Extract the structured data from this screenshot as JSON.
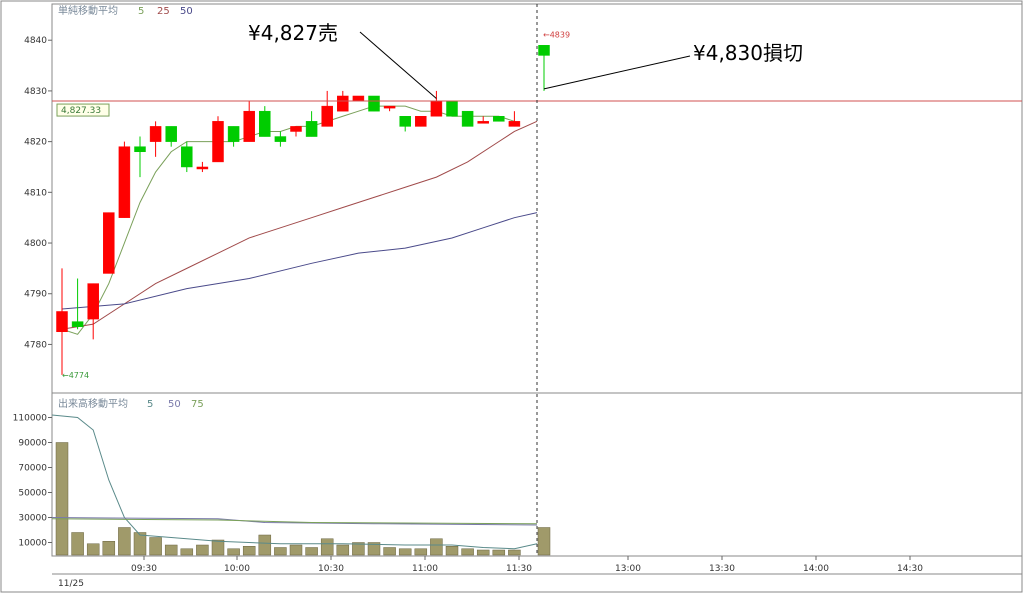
{
  "chart_data": [
    {
      "type": "candlestick",
      "title": "単純移動平均",
      "ma_periods": [
        "5",
        "25",
        "50"
      ],
      "ma_colors": [
        "#7aa05a",
        "#a04a4a",
        "#4a4a8a"
      ],
      "ylim": [
        4772,
        4843
      ],
      "y_ticks": [
        "4780",
        "4790",
        "4800",
        "4810",
        "4820",
        "4830",
        "4840"
      ],
      "bar_interval_minutes": 5,
      "candles": [
        {
          "time": "09:05",
          "open": 4782.5,
          "high": 4795,
          "low": 4774,
          "close": 4786.5
        },
        {
          "time": "09:10",
          "open": 4784.5,
          "high": 4793,
          "low": 4783,
          "close": 4783.5
        },
        {
          "time": "09:15",
          "open": 4785,
          "high": 4792,
          "low": 4781,
          "close": 4792
        },
        {
          "time": "09:20",
          "open": 4794,
          "high": 4806,
          "low": 4794,
          "close": 4806
        },
        {
          "time": "09:25",
          "open": 4805,
          "high": 4820,
          "low": 4805,
          "close": 4819
        },
        {
          "time": "09:30",
          "open": 4819,
          "high": 4821,
          "low": 4813,
          "close": 4818
        },
        {
          "time": "09:35",
          "open": 4820,
          "high": 4824,
          "low": 4817,
          "close": 4823
        },
        {
          "time": "09:40",
          "open": 4823,
          "high": 4823,
          "low": 4819,
          "close": 4820
        },
        {
          "time": "09:45",
          "open": 4819,
          "high": 4820,
          "low": 4814,
          "close": 4815
        },
        {
          "time": "09:50",
          "open": 4815,
          "high": 4816,
          "low": 4814,
          "close": 4815
        },
        {
          "time": "09:55",
          "open": 4816,
          "high": 4825,
          "low": 4816,
          "close": 4824
        },
        {
          "time": "10:00",
          "open": 4823,
          "high": 4823,
          "low": 4819,
          "close": 4820
        },
        {
          "time": "10:05",
          "open": 4820,
          "high": 4828,
          "low": 4820,
          "close": 4826
        },
        {
          "time": "10:10",
          "open": 4826,
          "high": 4827,
          "low": 4821,
          "close": 4821
        },
        {
          "time": "10:15",
          "open": 4821,
          "high": 4822,
          "low": 4819,
          "close": 4820
        },
        {
          "time": "10:20",
          "open": 4822,
          "high": 4823,
          "low": 4821,
          "close": 4823
        },
        {
          "time": "10:25",
          "open": 4824,
          "high": 4826,
          "low": 4821,
          "close": 4821
        },
        {
          "time": "10:30",
          "open": 4823,
          "high": 4830,
          "low": 4823,
          "close": 4827
        },
        {
          "time": "10:35",
          "open": 4826,
          "high": 4830,
          "low": 4826,
          "close": 4829
        },
        {
          "time": "10:40",
          "open": 4828,
          "high": 4829,
          "low": 4828,
          "close": 4829
        },
        {
          "time": "10:45",
          "open": 4829,
          "high": 4829,
          "low": 4826,
          "close": 4826
        },
        {
          "time": "10:50",
          "open": 4827,
          "high": 4827,
          "low": 4826,
          "close": 4827
        },
        {
          "time": "10:55",
          "open": 4825,
          "high": 4825,
          "low": 4822,
          "close": 4823
        },
        {
          "time": "11:00",
          "open": 4823,
          "high": 4825,
          "low": 4823,
          "close": 4825
        },
        {
          "time": "11:05",
          "open": 4825,
          "high": 4830,
          "low": 4825,
          "close": 4828
        },
        {
          "time": "11:10",
          "open": 4828,
          "high": 4828,
          "low": 4825,
          "close": 4825
        },
        {
          "time": "11:15",
          "open": 4826,
          "high": 4826,
          "low": 4823,
          "close": 4823
        },
        {
          "time": "11:20",
          "open": 4824,
          "high": 4825,
          "low": 4824,
          "close": 4824
        },
        {
          "time": "11:25",
          "open": 4825,
          "high": 4825,
          "low": 4824,
          "close": 4824
        },
        {
          "time": "11:30",
          "open": 4823,
          "high": 4826,
          "low": 4823,
          "close": 4824
        },
        {
          "time": "12:30",
          "open": 4839,
          "high": 4839,
          "low": 4830,
          "close": 4837
        }
      ],
      "up_color": "#ff0000",
      "down_color": "#00cc00",
      "ma5": [
        [
          0,
          4783
        ],
        [
          1,
          4782
        ],
        [
          2,
          4786
        ],
        [
          3,
          4792
        ],
        [
          4,
          4800
        ],
        [
          5,
          4808
        ],
        [
          6,
          4814
        ],
        [
          7,
          4818
        ],
        [
          8,
          4820
        ],
        [
          9,
          4820
        ],
        [
          10,
          4820
        ],
        [
          11,
          4820
        ],
        [
          12,
          4821
        ],
        [
          13,
          4822
        ],
        [
          14,
          4822
        ],
        [
          15,
          4823
        ],
        [
          16,
          4823
        ],
        [
          17,
          4824
        ],
        [
          18,
          4825
        ],
        [
          19,
          4826
        ],
        [
          20,
          4827
        ],
        [
          21,
          4827
        ],
        [
          22,
          4827
        ],
        [
          23,
          4826
        ],
        [
          24,
          4826
        ],
        [
          25,
          4825
        ],
        [
          26,
          4825
        ],
        [
          27,
          4825
        ],
        [
          28,
          4825
        ],
        [
          29,
          4824
        ]
      ],
      "ma25": [
        [
          0,
          4783
        ],
        [
          2,
          4784
        ],
        [
          4,
          4788
        ],
        [
          6,
          4792
        ],
        [
          8,
          4795
        ],
        [
          10,
          4798
        ],
        [
          12,
          4801
        ],
        [
          14,
          4803
        ],
        [
          16,
          4805
        ],
        [
          18,
          4807
        ],
        [
          20,
          4809
        ],
        [
          22,
          4811
        ],
        [
          24,
          4813
        ],
        [
          26,
          4816
        ],
        [
          28,
          4820
        ],
        [
          29,
          4822
        ],
        [
          30,
          4824
        ]
      ],
      "ma50": [
        [
          0,
          4787
        ],
        [
          4,
          4788
        ],
        [
          8,
          4791
        ],
        [
          12,
          4793
        ],
        [
          16,
          4796
        ],
        [
          19,
          4798
        ],
        [
          22,
          4799
        ],
        [
          25,
          4801
        ],
        [
          27,
          4803
        ],
        [
          29,
          4805
        ],
        [
          30,
          4806
        ]
      ],
      "price_line": 4828,
      "price_label": "4,827.33",
      "high_label": "←4839",
      "low_label": "←4774",
      "annotations": [
        {
          "text": "¥4,827売",
          "target_index": 24,
          "target_price": 4828.5
        },
        {
          "text": "¥4,830損切",
          "target_index": 30,
          "target_price": 4830
        }
      ]
    },
    {
      "type": "bar",
      "title": "出来高移動平均",
      "ma_periods": [
        "5",
        "50",
        "75"
      ],
      "ma_colors": [
        "#5a8a8a",
        "#7a7aaa",
        "#7aa05a"
      ],
      "ylim": [
        0,
        116000
      ],
      "y_ticks": [
        "10000",
        "30000",
        "50000",
        "70000",
        "90000",
        "110000"
      ],
      "bar_color": "#a09a6a",
      "values": [
        90000,
        18000,
        9000,
        11000,
        22000,
        18000,
        14000,
        8000,
        5000,
        8000,
        12000,
        5000,
        7000,
        16000,
        6000,
        8000,
        6000,
        13000,
        8000,
        10000,
        10000,
        6000,
        5000,
        5000,
        13000,
        7000,
        5000,
        4000,
        4000,
        4000,
        22000
      ],
      "vol_ma5": [
        [
          0,
          112000
        ],
        [
          1,
          110000
        ],
        [
          2,
          100000
        ],
        [
          3,
          60000
        ],
        [
          4,
          30000
        ],
        [
          5,
          16000
        ],
        [
          6,
          15000
        ],
        [
          7,
          14000
        ],
        [
          10,
          11000
        ],
        [
          14,
          9000
        ],
        [
          18,
          9000
        ],
        [
          22,
          8000
        ],
        [
          25,
          8000
        ],
        [
          27,
          6000
        ],
        [
          29,
          5000
        ],
        [
          30,
          9000
        ]
      ],
      "vol_ma50": [
        [
          0,
          30000
        ],
        [
          10,
          29000
        ],
        [
          13,
          26000
        ],
        [
          20,
          25000
        ],
        [
          30,
          24000
        ]
      ],
      "vol_ma75": [
        [
          0,
          29000
        ],
        [
          10,
          28000
        ],
        [
          16,
          26000
        ],
        [
          30,
          25000
        ]
      ]
    }
  ],
  "x_axis": {
    "date_label": "11/25",
    "time_labels": [
      "09:30",
      "10:00",
      "10:30",
      "11:00",
      "11:30",
      "13:00",
      "13:30",
      "14:00",
      "14:30"
    ]
  }
}
